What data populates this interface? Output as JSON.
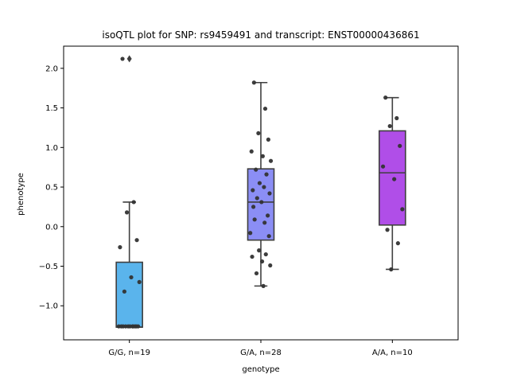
{
  "chart_data": {
    "type": "box",
    "title": "isoQTL plot for SNP: rs9459491 and transcript: ENST00000436861",
    "xlabel": "genotype",
    "ylabel": "phenotype",
    "ylim": [
      -1.43,
      2.28
    ],
    "yticks": [
      -1.0,
      -0.5,
      0.0,
      0.5,
      1.0,
      1.5,
      2.0
    ],
    "ytick_labels": [
      "−1.0",
      "−0.5",
      "0.0",
      "0.5",
      "1.0",
      "1.5",
      "2.0"
    ],
    "categories": [
      "G/G, n=19",
      "G/A, n=28",
      "A/A, n=10"
    ],
    "groups": [
      {
        "label": "G/G, n=19",
        "color": "#5ab4ec",
        "box": {
          "q1": -1.27,
          "median": -1.27,
          "q3": -0.45,
          "whisker_low": -1.27,
          "whisker_high": 0.31
        },
        "outliers": [
          2.12
        ],
        "points": [
          2.12,
          0.31,
          0.18,
          -0.17,
          -0.26,
          -0.64,
          -0.7,
          -0.82,
          -1.26,
          -1.26,
          -1.26,
          -1.26,
          -1.26,
          -1.26,
          -1.26,
          -1.26,
          -1.26,
          -1.26,
          -1.26
        ]
      },
      {
        "label": "G/A, n=28",
        "color": "#8b8ef5",
        "box": {
          "q1": -0.17,
          "median": 0.31,
          "q3": 0.73,
          "whisker_low": -0.75,
          "whisker_high": 1.82
        },
        "outliers": [],
        "points": [
          1.82,
          1.49,
          1.18,
          1.1,
          0.95,
          0.89,
          0.83,
          0.72,
          0.66,
          0.55,
          0.5,
          0.46,
          0.42,
          0.36,
          0.31,
          0.14,
          0.09,
          0.05,
          -0.08,
          -0.12,
          -0.3,
          -0.35,
          -0.38,
          -0.44,
          -0.49,
          -0.59,
          -0.75,
          0.25
        ]
      },
      {
        "label": "A/A, n=10",
        "color": "#b04ee8",
        "box": {
          "q1": 0.02,
          "median": 0.68,
          "q3": 1.21,
          "whisker_low": -0.54,
          "whisker_high": 1.63
        },
        "outliers": [],
        "points": [
          1.63,
          1.37,
          1.27,
          1.02,
          0.76,
          0.6,
          0.22,
          -0.04,
          -0.21,
          -0.54
        ]
      }
    ]
  }
}
